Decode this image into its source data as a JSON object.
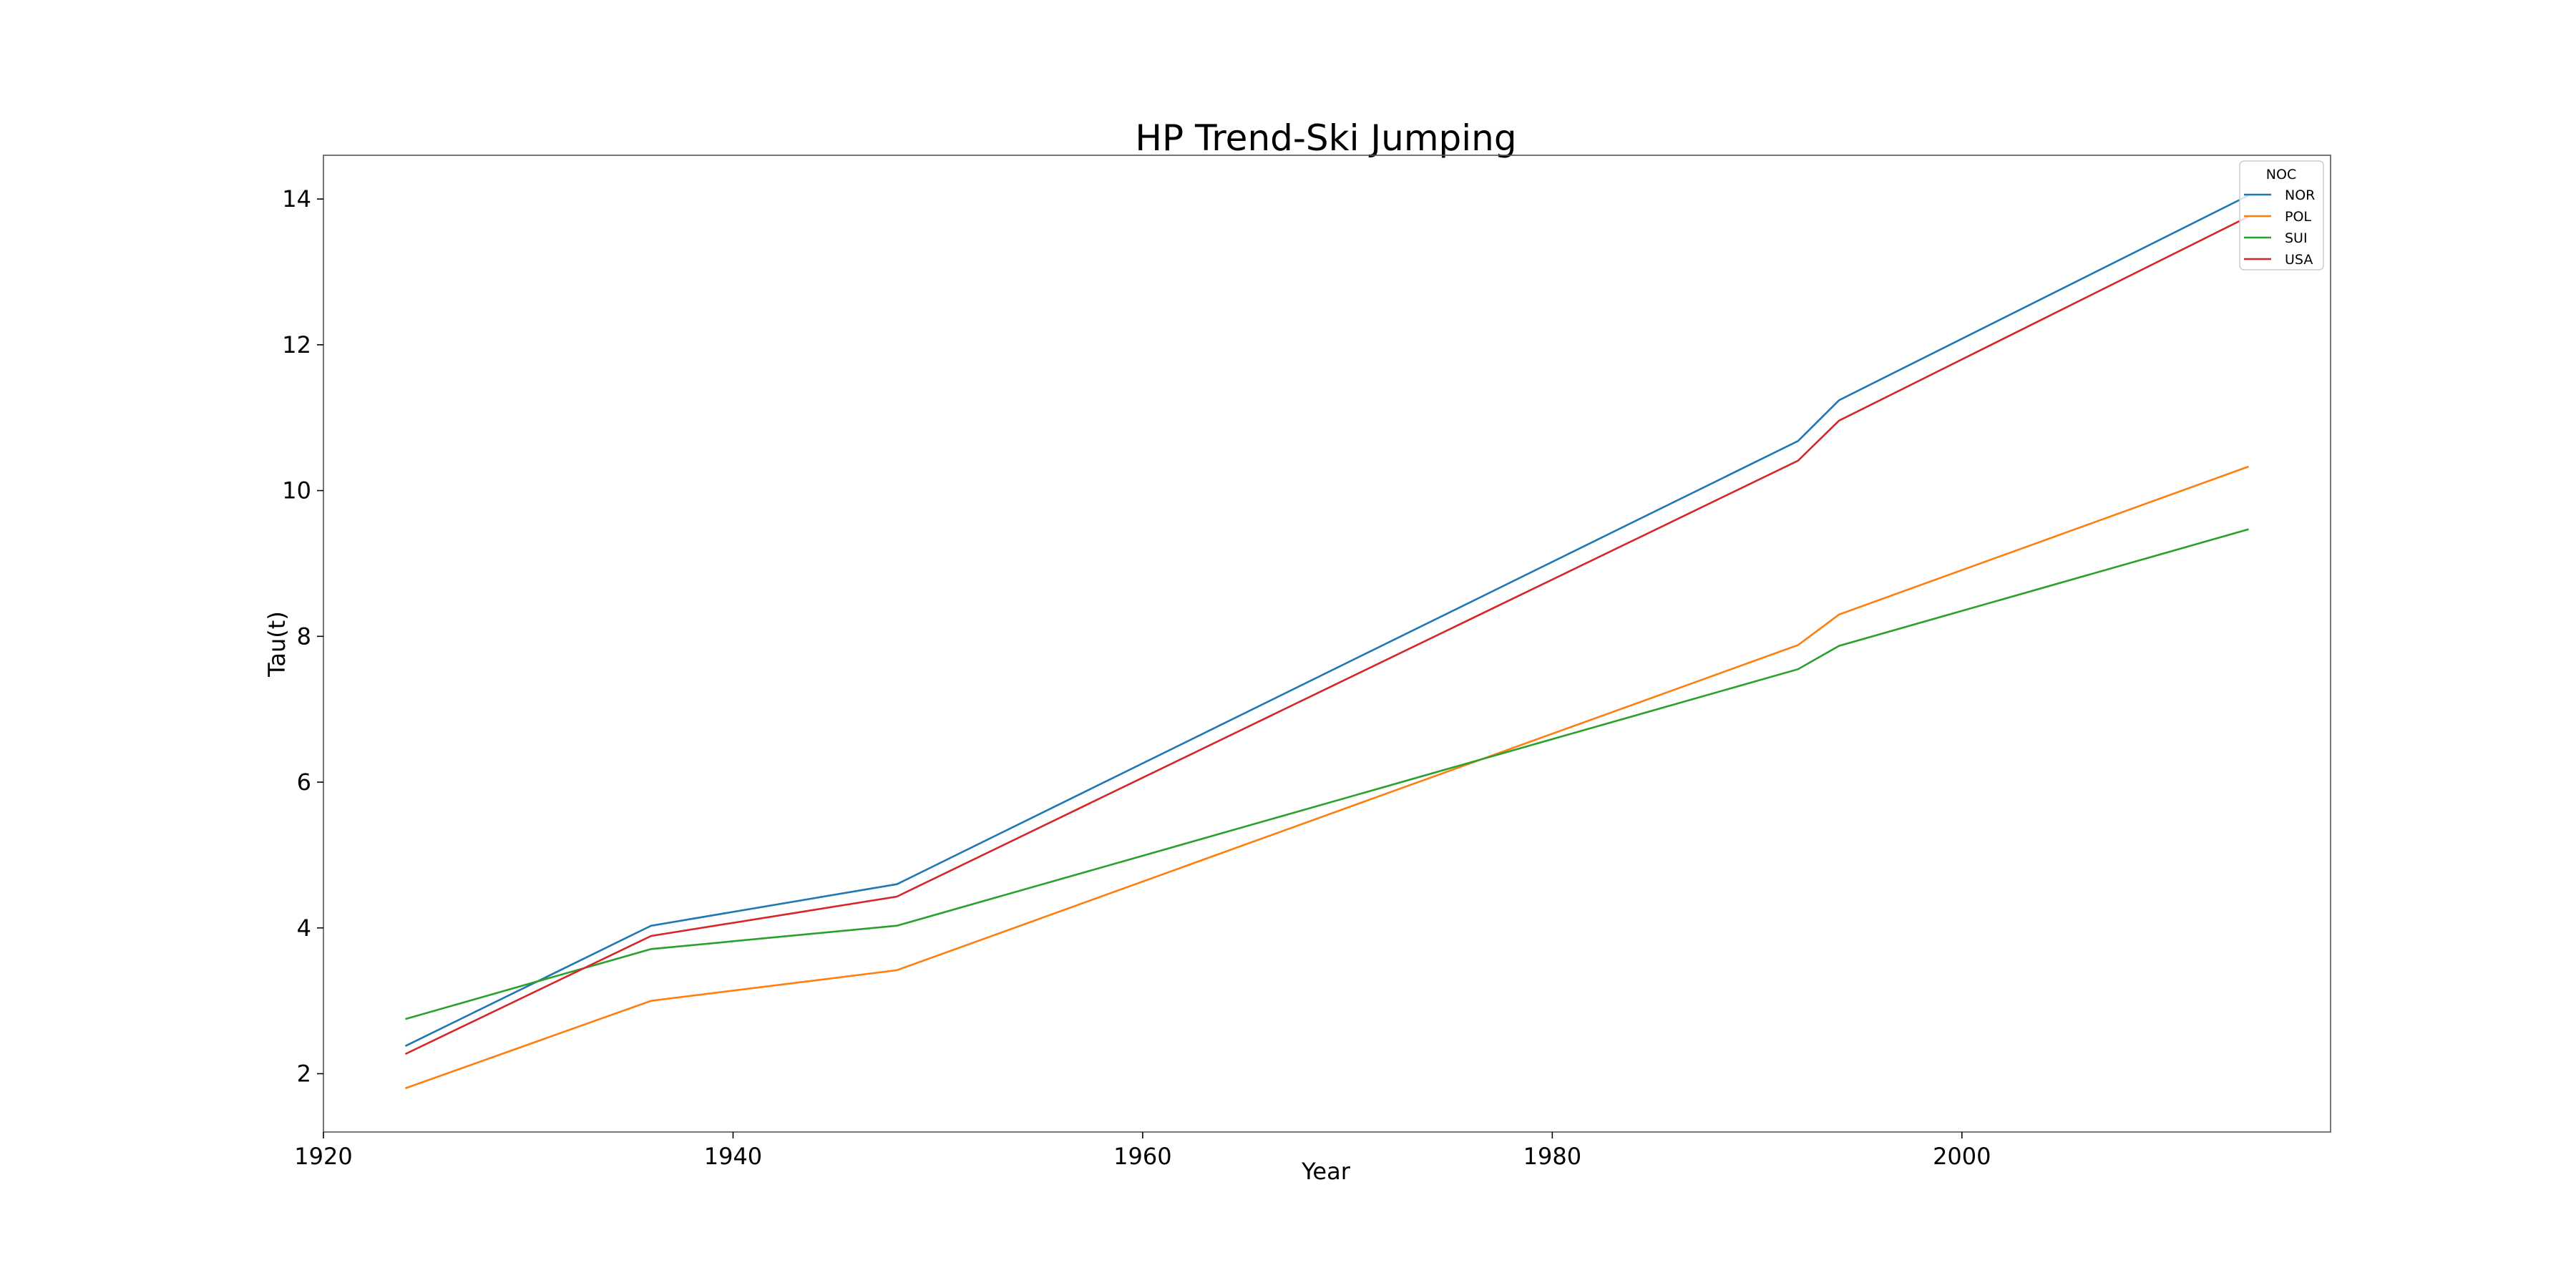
{
  "chart_data": {
    "type": "line",
    "title": "HP Trend-Ski Jumping",
    "xlabel": "Year",
    "ylabel": "Tau(t)",
    "xlim": [
      1920,
      2018
    ],
    "ylim": [
      1.2,
      14.6
    ],
    "xticks": [
      1920,
      1940,
      1960,
      1980,
      2000
    ],
    "yticks": [
      2,
      4,
      6,
      8,
      10,
      12,
      14
    ],
    "grid": false,
    "legend": {
      "title": "NOC",
      "placement": "top-right"
    },
    "x": [
      1924,
      1936,
      1948,
      1992,
      1994,
      2014
    ],
    "series": [
      {
        "name": "NOR",
        "color": "#1f77b4",
        "values": [
          2.38,
          4.03,
          4.6,
          10.68,
          11.24,
          14.05
        ]
      },
      {
        "name": "POL",
        "color": "#ff7f0e",
        "values": [
          1.8,
          3.0,
          3.42,
          7.88,
          8.3,
          10.33
        ]
      },
      {
        "name": "SUI",
        "color": "#2ca02c",
        "values": [
          2.75,
          3.71,
          4.03,
          7.55,
          7.87,
          9.47
        ]
      },
      {
        "name": "USA",
        "color": "#d62728",
        "values": [
          2.27,
          3.89,
          4.43,
          10.41,
          10.96,
          13.76
        ]
      }
    ]
  }
}
